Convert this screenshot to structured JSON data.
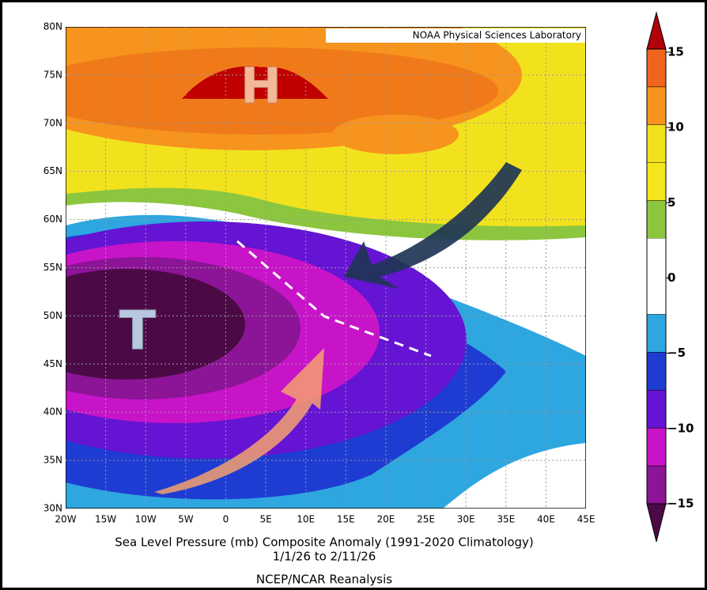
{
  "map": {
    "credit": "NOAA Physical Sciences Laboratory",
    "lat_labels": [
      "80N",
      "75N",
      "70N",
      "65N",
      "60N",
      "55N",
      "50N",
      "45N",
      "40N",
      "35N",
      "30N"
    ],
    "lon_labels": [
      "20W",
      "15W",
      "10W",
      "5W",
      "0",
      "5E",
      "10E",
      "15E",
      "20E",
      "25E",
      "30E",
      "35E",
      "40E",
      "45E"
    ],
    "annotations": {
      "high": "H",
      "low": "T"
    },
    "title": [
      "Sea Level Pressure (mb) Composite Anomaly (1991-2020 Climatology)",
      "1/1/26  to 2/11/26",
      "NCEP/NCAR Reanalysis"
    ]
  },
  "colorbar": {
    "labels": [
      "15",
      "10",
      "5",
      "0",
      "−5",
      "−10",
      "−15"
    ]
  }
}
